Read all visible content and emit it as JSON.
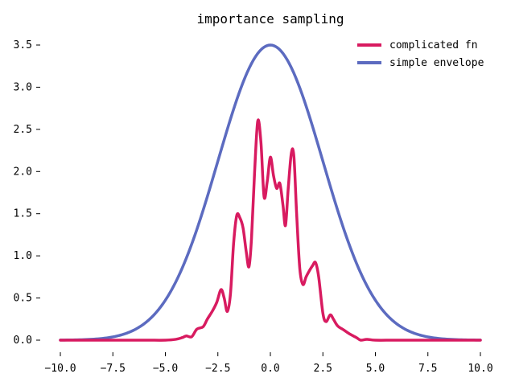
{
  "chart_data": {
    "type": "line",
    "title": "importance sampling",
    "xlabel": "",
    "ylabel": "",
    "xlim": [
      -10,
      10
    ],
    "ylim": [
      0,
      3.5
    ],
    "grid": false,
    "legend_position": "top-right",
    "x_ticks": [
      -10.0,
      -7.5,
      -5.0,
      -2.5,
      0.0,
      2.5,
      5.0,
      7.5,
      10.0
    ],
    "x_tick_labels": [
      "−10.0",
      "−7.5",
      "−5.0",
      "−2.5",
      "0.0",
      "2.5",
      "5.0",
      "7.5",
      "10.0"
    ],
    "y_ticks": [
      0.0,
      0.5,
      1.0,
      1.5,
      2.0,
      2.5,
      3.0,
      3.5
    ],
    "y_tick_labels": [
      "0.0",
      "0.5",
      "1.0",
      "1.5",
      "2.0",
      "2.5",
      "3.0",
      "3.5"
    ],
    "series": [
      {
        "name": "complicated fn",
        "color": "#d81b60",
        "points": [
          [
            -10.0,
            0.0
          ],
          [
            -8.0,
            0.0
          ],
          [
            -6.0,
            0.0
          ],
          [
            -5.0,
            0.0
          ],
          [
            -4.5,
            0.01
          ],
          [
            -4.2,
            0.03
          ],
          [
            -4.0,
            0.05
          ],
          [
            -3.75,
            0.04
          ],
          [
            -3.5,
            0.13
          ],
          [
            -3.2,
            0.16
          ],
          [
            -3.0,
            0.25
          ],
          [
            -2.75,
            0.35
          ],
          [
            -2.55,
            0.45
          ],
          [
            -2.35,
            0.6
          ],
          [
            -2.2,
            0.5
          ],
          [
            -2.05,
            0.34
          ],
          [
            -1.9,
            0.55
          ],
          [
            -1.75,
            1.15
          ],
          [
            -1.6,
            1.48
          ],
          [
            -1.45,
            1.45
          ],
          [
            -1.3,
            1.33
          ],
          [
            -1.15,
            1.05
          ],
          [
            -1.02,
            0.87
          ],
          [
            -0.9,
            1.2
          ],
          [
            -0.75,
            2.0
          ],
          [
            -0.6,
            2.6
          ],
          [
            -0.45,
            2.35
          ],
          [
            -0.3,
            1.7
          ],
          [
            -0.15,
            1.88
          ],
          [
            0.0,
            2.17
          ],
          [
            0.15,
            1.95
          ],
          [
            0.3,
            1.8
          ],
          [
            0.45,
            1.86
          ],
          [
            0.6,
            1.6
          ],
          [
            0.72,
            1.36
          ],
          [
            0.85,
            1.8
          ],
          [
            1.0,
            2.22
          ],
          [
            1.12,
            2.18
          ],
          [
            1.25,
            1.5
          ],
          [
            1.4,
            0.85
          ],
          [
            1.55,
            0.66
          ],
          [
            1.7,
            0.75
          ],
          [
            1.85,
            0.82
          ],
          [
            2.0,
            0.88
          ],
          [
            2.15,
            0.92
          ],
          [
            2.3,
            0.75
          ],
          [
            2.5,
            0.32
          ],
          [
            2.65,
            0.22
          ],
          [
            2.85,
            0.3
          ],
          [
            3.0,
            0.25
          ],
          [
            3.2,
            0.17
          ],
          [
            3.5,
            0.12
          ],
          [
            3.8,
            0.07
          ],
          [
            4.1,
            0.03
          ],
          [
            4.3,
            0.0
          ],
          [
            4.6,
            0.01
          ],
          [
            5.0,
            0.0
          ],
          [
            6.0,
            0.0
          ],
          [
            8.0,
            0.0
          ],
          [
            10.0,
            0.0
          ]
        ]
      },
      {
        "name": "simple envelope",
        "color": "#5c6bc0",
        "function": "gaussian",
        "amplitude": 3.5,
        "mean": 0.0,
        "sigma": 2.5
      }
    ]
  }
}
